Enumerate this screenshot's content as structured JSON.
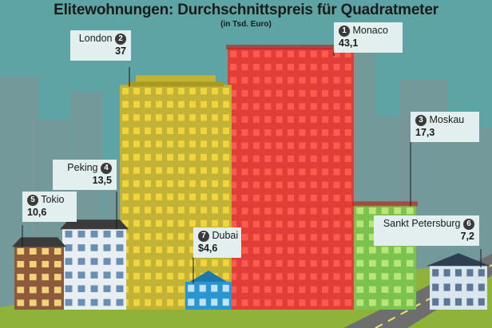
{
  "title": "Elitewohnungen: Durchschnittspreis für Quadratmeter",
  "subtitle": "(in Tsd. Euro)",
  "colors": {
    "sky": "#5fa4a4",
    "background_building": "#7a9598",
    "london": "#c2b236",
    "monaco": "#e03e36",
    "moskau": "#7cc24e",
    "dubai": "#2a95d2",
    "label_bg": "#e3efee",
    "road": "#6e6e6e",
    "grass": "#8fb33a"
  },
  "chart_data": {
    "type": "bar",
    "title": "Elitewohnungen: Durchschnittspreis für Quadratmeter",
    "subtitle": "(in Tsd. Euro)",
    "unit": "Tsd. Euro",
    "categories": [
      "Monaco",
      "London",
      "Moskau",
      "Peking",
      "Tokio",
      "Sankt Petersburg",
      "Dubai"
    ],
    "values": [
      43.1,
      37,
      17.3,
      13.5,
      10.6,
      7.2,
      4.6
    ],
    "ranks": [
      1,
      2,
      3,
      4,
      5,
      6,
      7
    ],
    "value_labels": [
      "43,1",
      "37",
      "17,3",
      "13,5",
      "10,6",
      "7,2",
      "$4,6"
    ],
    "style": "pictorial buildings"
  }
}
